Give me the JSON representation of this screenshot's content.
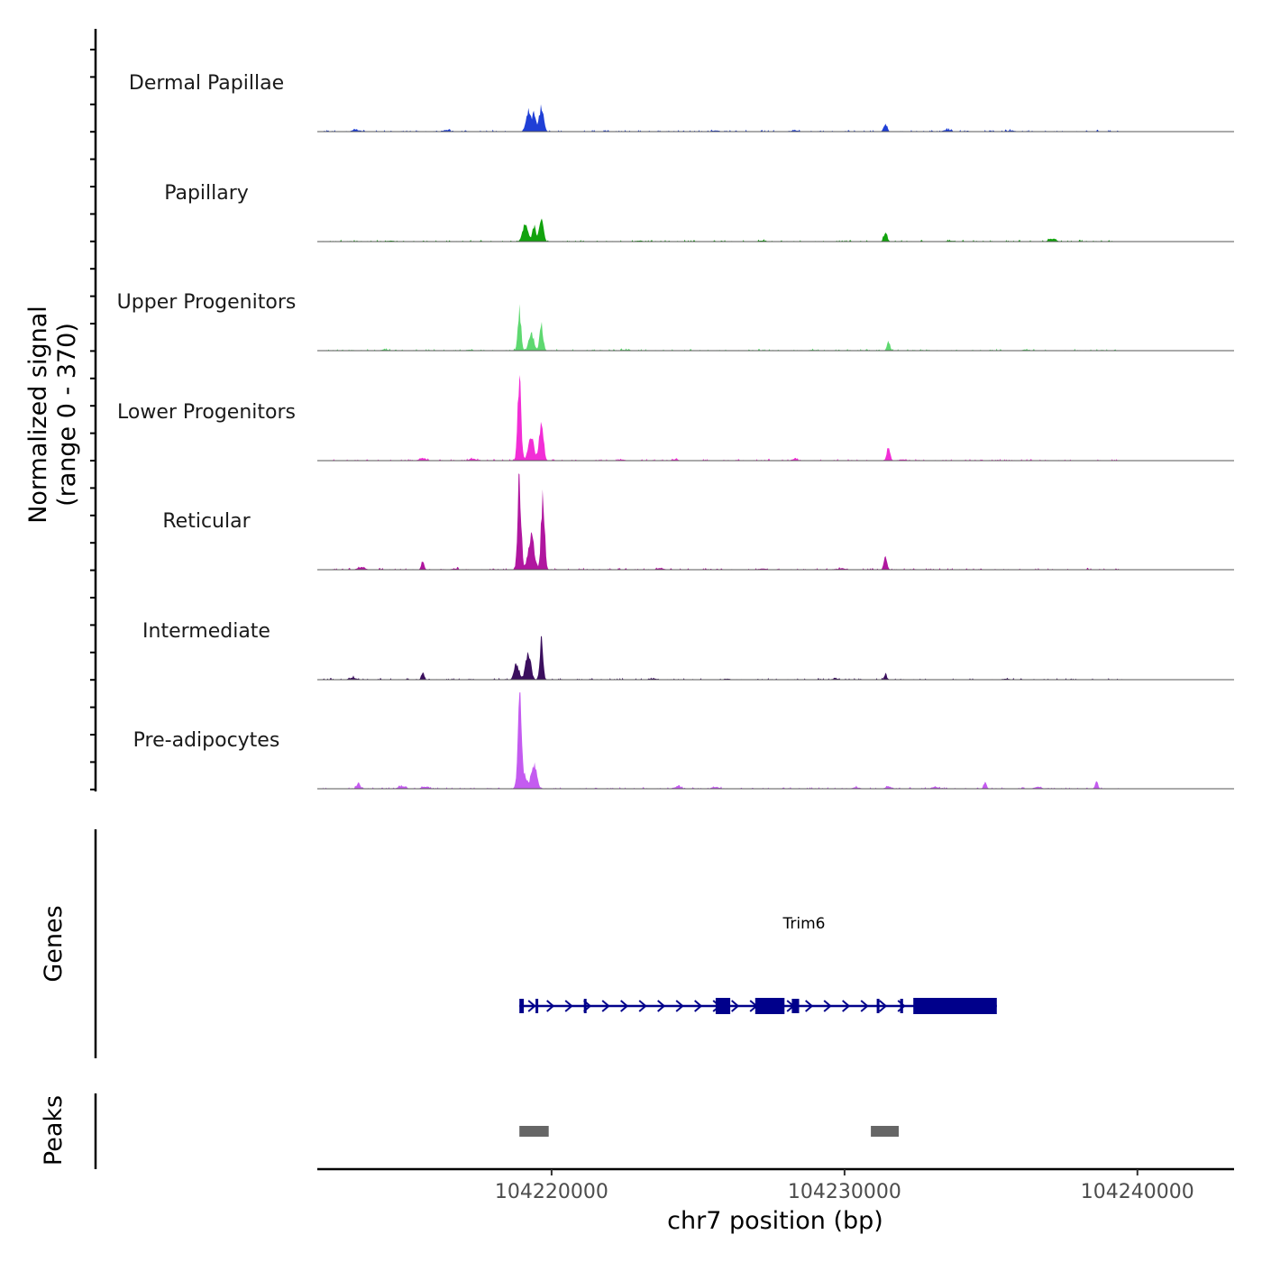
{
  "chart_data": {
    "type": "area",
    "title": "",
    "ylabel_line1": "Normalized signal",
    "ylabel_line2": "(range 0 - 370)",
    "y_range": [
      0,
      370
    ],
    "xlabel": "chr7 position (bp)",
    "xlim": [
      104212000,
      104243300
    ],
    "x_ticks": [
      104220000,
      104230000,
      104240000
    ],
    "x_tick_labels": [
      "104220000",
      "104230000",
      "104240000"
    ],
    "tracks": [
      {
        "name": "Dermal Papillae",
        "color": "#1f3fd6",
        "peaks": [
          [
            104219200,
            80,
            220
          ],
          [
            104219650,
            75,
            250
          ],
          [
            104219400,
            60,
            180
          ],
          [
            104231400,
            60,
            70
          ]
        ],
        "noise": [
          [
            104213300,
            20
          ],
          [
            104216400,
            15
          ],
          [
            104225600,
            12
          ],
          [
            104228300,
            12
          ],
          [
            104233500,
            18
          ],
          [
            104235700,
            12
          ]
        ]
      },
      {
        "name": "Papillary",
        "color": "#12a30e",
        "peaks": [
          [
            104219100,
            90,
            170
          ],
          [
            104219650,
            70,
            240
          ],
          [
            104219400,
            60,
            160
          ],
          [
            104231400,
            60,
            85
          ]
        ],
        "noise": [
          [
            104214500,
            10
          ],
          [
            104223000,
            10
          ],
          [
            104227200,
            10
          ],
          [
            104233600,
            10
          ],
          [
            104237100,
            30
          ]
        ]
      },
      {
        "name": "Upper Progenitors",
        "color": "#5ed870",
        "peaks": [
          [
            104218900,
            55,
            420
          ],
          [
            104219650,
            60,
            270
          ],
          [
            104219300,
            80,
            190
          ],
          [
            104231500,
            50,
            90
          ]
        ],
        "noise": [
          [
            104214300,
            12
          ],
          [
            104217200,
            10
          ],
          [
            104222500,
            8
          ],
          [
            104228900,
            8
          ],
          [
            104236200,
            10
          ]
        ]
      },
      {
        "name": "Lower Progenitors",
        "color": "#f22ed6",
        "peaks": [
          [
            104218900,
            60,
            800
          ],
          [
            104219650,
            70,
            430
          ],
          [
            104219300,
            90,
            260
          ],
          [
            104231500,
            55,
            150
          ],
          [
            104228300,
            80,
            20
          ]
        ],
        "noise": [
          [
            104215600,
            25
          ],
          [
            104217300,
            20
          ],
          [
            104222400,
            10
          ],
          [
            104224200,
            12
          ],
          [
            104232000,
            12
          ]
        ]
      },
      {
        "name": "Reticular",
        "color": "#b0169f",
        "peaks": [
          [
            104218900,
            60,
            930
          ],
          [
            104219700,
            60,
            770
          ],
          [
            104219300,
            100,
            350
          ],
          [
            104231400,
            55,
            150
          ],
          [
            104215600,
            50,
            90
          ]
        ],
        "noise": [
          [
            104213500,
            25
          ],
          [
            104216700,
            12
          ],
          [
            104223700,
            15
          ],
          [
            104227200,
            12
          ],
          [
            104229900,
            15
          ]
        ]
      },
      {
        "name": "Intermediate",
        "color": "#3b0f5e",
        "peaks": [
          [
            104219200,
            90,
            280
          ],
          [
            104219650,
            55,
            440
          ],
          [
            104218800,
            80,
            180
          ],
          [
            104215600,
            50,
            70
          ],
          [
            104231400,
            50,
            45
          ]
        ],
        "noise": [
          [
            104213200,
            20
          ],
          [
            104223500,
            10
          ],
          [
            104226000,
            10
          ],
          [
            104229700,
            10
          ],
          [
            104235500,
            10
          ]
        ]
      },
      {
        "name": "Pre-adipocytes",
        "color": "#c45bf0",
        "peaks": [
          [
            104218900,
            55,
            1000
          ],
          [
            104219400,
            90,
            280
          ],
          [
            104219000,
            120,
            200
          ],
          [
            104213400,
            60,
            70
          ],
          [
            104234800,
            50,
            70
          ],
          [
            104238600,
            50,
            75
          ],
          [
            104231500,
            80,
            30
          ]
        ],
        "noise": [
          [
            104214900,
            30
          ],
          [
            104215700,
            25
          ],
          [
            104224300,
            25
          ],
          [
            104225600,
            20
          ],
          [
            104230400,
            15
          ],
          [
            104233100,
            20
          ],
          [
            104236600,
            20
          ]
        ]
      }
    ],
    "genes": {
      "label": "Genes",
      "name": "Trim6",
      "strand": "+",
      "start": 104218900,
      "end": 104235200,
      "exons": [
        [
          104218900,
          104219050
        ],
        [
          104219450,
          104219530
        ],
        [
          104221100,
          104221180
        ],
        [
          104225600,
          104226100
        ],
        [
          104226950,
          104227950
        ],
        [
          104228200,
          104228450
        ],
        [
          104231100,
          104231160
        ],
        [
          104231900,
          104232000
        ],
        [
          104232350,
          104235200
        ]
      ]
    },
    "peaks_track": {
      "label": "Peaks",
      "regions": [
        [
          104218900,
          104219900
        ],
        [
          104230900,
          104231850
        ]
      ]
    }
  }
}
